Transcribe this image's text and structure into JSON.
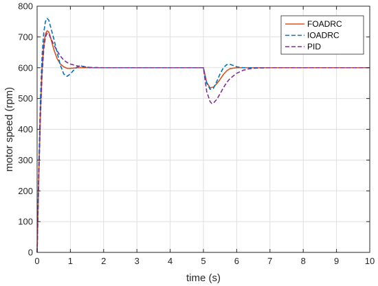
{
  "chart_data": {
    "type": "line",
    "xlabel": "time (s)",
    "ylabel": "motor speed (rpm)",
    "xlim": [
      0,
      10
    ],
    "ylim": [
      0,
      800
    ],
    "xticks": [
      0,
      1,
      2,
      3,
      4,
      5,
      6,
      7,
      8,
      9,
      10
    ],
    "yticks": [
      0,
      100,
      200,
      300,
      400,
      500,
      600,
      700,
      800
    ],
    "grid": true,
    "legend_position": "top-right",
    "series": [
      {
        "name": "FOADRC",
        "color": "#d95319",
        "dash": "solid",
        "points": [
          [
            0,
            0
          ],
          [
            0.05,
            250
          ],
          [
            0.1,
            460
          ],
          [
            0.15,
            600
          ],
          [
            0.2,
            675
          ],
          [
            0.25,
            710
          ],
          [
            0.3,
            720
          ],
          [
            0.35,
            716
          ],
          [
            0.4,
            700
          ],
          [
            0.5,
            660
          ],
          [
            0.6,
            630
          ],
          [
            0.7,
            612
          ],
          [
            0.8,
            603
          ],
          [
            0.9,
            598
          ],
          [
            1.0,
            598
          ],
          [
            1.2,
            600
          ],
          [
            1.5,
            600
          ],
          [
            2,
            600
          ],
          [
            3,
            600
          ],
          [
            4,
            600
          ],
          [
            5.0,
            600
          ],
          [
            5.05,
            575
          ],
          [
            5.1,
            552
          ],
          [
            5.2,
            535
          ],
          [
            5.3,
            537
          ],
          [
            5.4,
            548
          ],
          [
            5.5,
            562
          ],
          [
            5.6,
            578
          ],
          [
            5.7,
            590
          ],
          [
            5.8,
            597
          ],
          [
            6.0,
            600
          ],
          [
            6.5,
            600
          ],
          [
            7,
            600
          ],
          [
            8,
            600
          ],
          [
            9,
            600
          ],
          [
            10,
            600
          ]
        ]
      },
      {
        "name": "IOADRC",
        "color": "#0072bd",
        "dash": "6,3",
        "points": [
          [
            0,
            0
          ],
          [
            0.05,
            280
          ],
          [
            0.1,
            500
          ],
          [
            0.15,
            640
          ],
          [
            0.2,
            715
          ],
          [
            0.25,
            750
          ],
          [
            0.3,
            760
          ],
          [
            0.35,
            755
          ],
          [
            0.4,
            735
          ],
          [
            0.5,
            695
          ],
          [
            0.6,
            650
          ],
          [
            0.7,
            608
          ],
          [
            0.8,
            580
          ],
          [
            0.85,
            575
          ],
          [
            0.9,
            572
          ],
          [
            1.0,
            580
          ],
          [
            1.1,
            592
          ],
          [
            1.2,
            602
          ],
          [
            1.3,
            606
          ],
          [
            1.4,
            604
          ],
          [
            1.6,
            600
          ],
          [
            2,
            600
          ],
          [
            3,
            600
          ],
          [
            4,
            600
          ],
          [
            5.0,
            600
          ],
          [
            5.05,
            572
          ],
          [
            5.1,
            550
          ],
          [
            5.2,
            530
          ],
          [
            5.3,
            533
          ],
          [
            5.4,
            555
          ],
          [
            5.5,
            580
          ],
          [
            5.6,
            600
          ],
          [
            5.7,
            610
          ],
          [
            5.8,
            611
          ],
          [
            5.9,
            607
          ],
          [
            6.0,
            603
          ],
          [
            6.2,
            600
          ],
          [
            7,
            600
          ],
          [
            8,
            600
          ],
          [
            9,
            600
          ],
          [
            10,
            600
          ]
        ]
      },
      {
        "name": "PID",
        "color": "#7e2f8e",
        "dash": "6,3",
        "points": [
          [
            0,
            0
          ],
          [
            0.05,
            240
          ],
          [
            0.1,
            440
          ],
          [
            0.15,
            580
          ],
          [
            0.2,
            660
          ],
          [
            0.25,
            700
          ],
          [
            0.3,
            712
          ],
          [
            0.35,
            710
          ],
          [
            0.4,
            698
          ],
          [
            0.5,
            675
          ],
          [
            0.6,
            655
          ],
          [
            0.7,
            638
          ],
          [
            0.8,
            625
          ],
          [
            0.9,
            617
          ],
          [
            1.0,
            612
          ],
          [
            1.2,
            606
          ],
          [
            1.4,
            603
          ],
          [
            1.6,
            601
          ],
          [
            2,
            600
          ],
          [
            3,
            600
          ],
          [
            4,
            600
          ],
          [
            5.0,
            600
          ],
          [
            5.05,
            560
          ],
          [
            5.1,
            522
          ],
          [
            5.2,
            490
          ],
          [
            5.25,
            484
          ],
          [
            5.3,
            485
          ],
          [
            5.4,
            497
          ],
          [
            5.5,
            515
          ],
          [
            5.6,
            535
          ],
          [
            5.7,
            552
          ],
          [
            5.8,
            565
          ],
          [
            6.0,
            582
          ],
          [
            6.2,
            592
          ],
          [
            6.4,
            597
          ],
          [
            6.6,
            599
          ],
          [
            7,
            600
          ],
          [
            8,
            600
          ],
          [
            9,
            600
          ],
          [
            10,
            600
          ]
        ]
      }
    ]
  }
}
